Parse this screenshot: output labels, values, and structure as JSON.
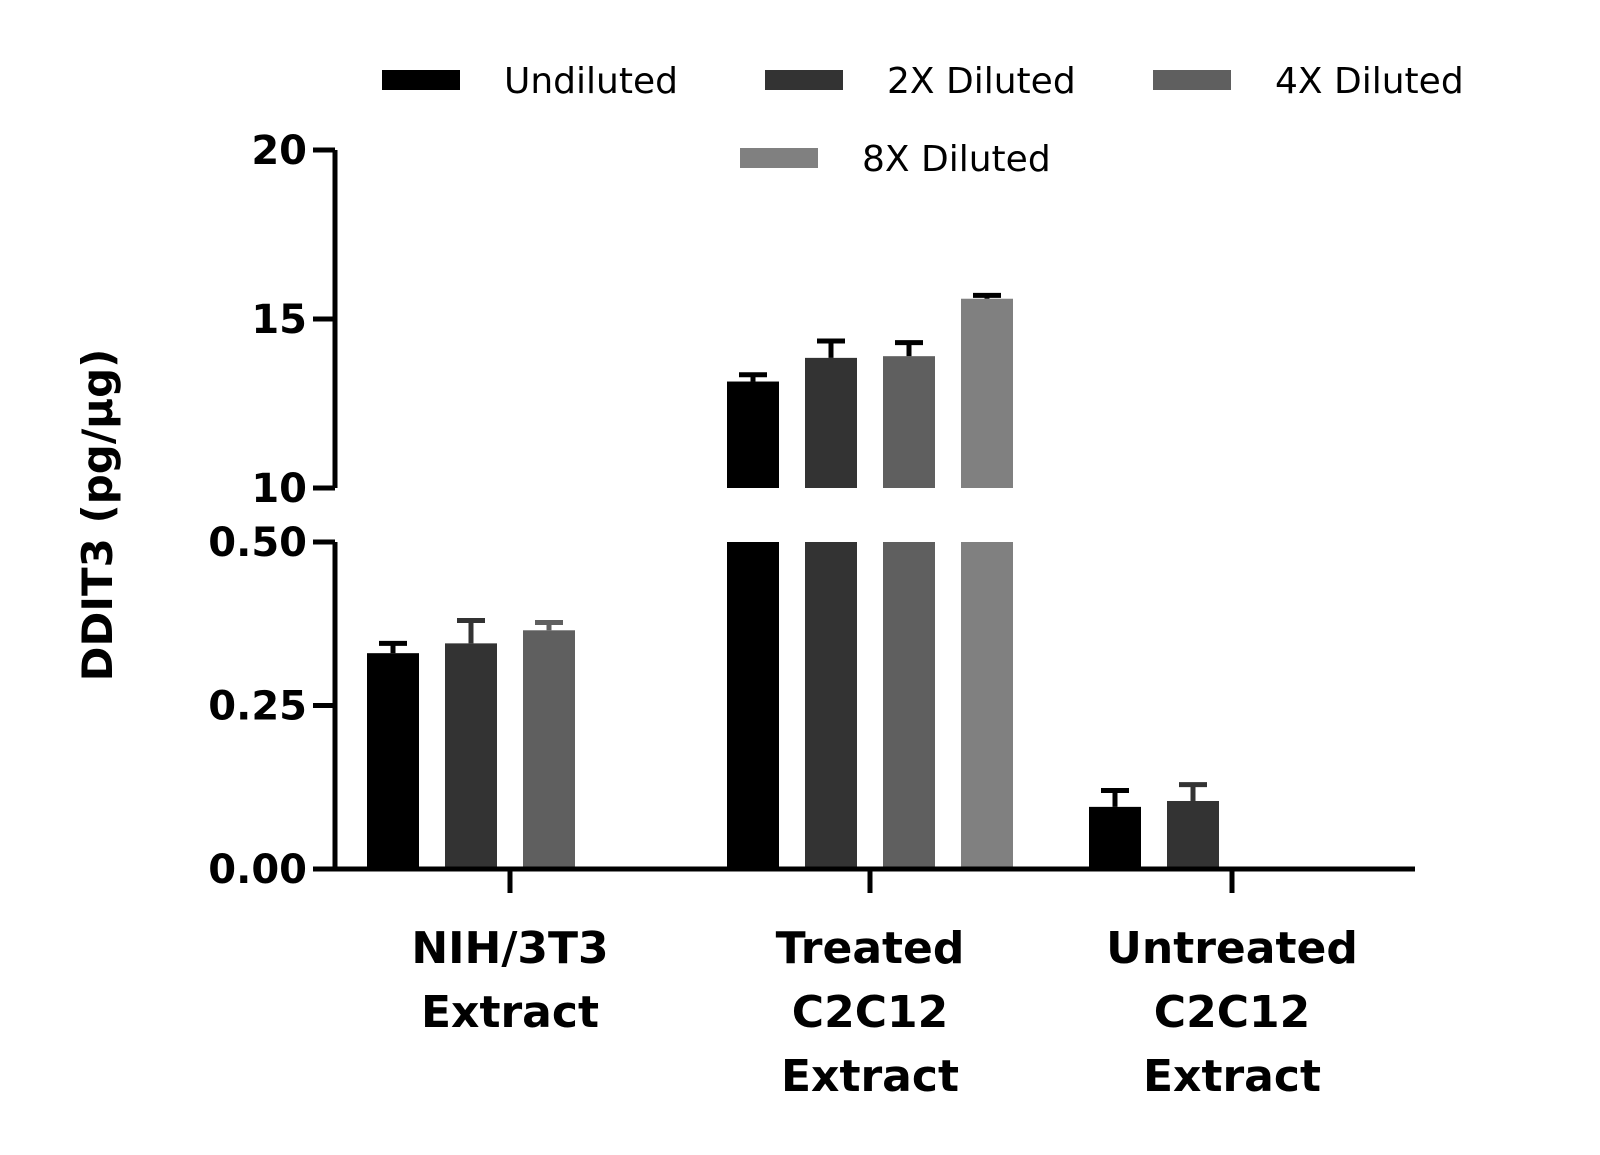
{
  "chart_data": {
    "type": "bar",
    "ylabel": "DDIT3 (pg/µg)",
    "xlabel": "",
    "categories": [
      [
        "NIH/3T3",
        "Extract"
      ],
      [
        "Treated",
        "C2C12",
        "Extract"
      ],
      [
        "Untreated",
        "C2C12",
        "Extract"
      ]
    ],
    "series": [
      {
        "name": "Undiluted",
        "color": "#000000",
        "values": [
          0.33,
          13.15,
          0.095
        ],
        "errors": [
          0.015,
          0.2,
          0.025
        ]
      },
      {
        "name": "2X Diluted",
        "color": "#333333",
        "values": [
          0.345,
          13.85,
          0.104
        ],
        "errors": [
          0.035,
          0.5,
          0.025
        ]
      },
      {
        "name": "4X Diluted",
        "color": "#5f5f5f",
        "values": [
          0.365,
          13.9,
          null
        ],
        "errors": [
          0.012,
          0.4,
          null
        ]
      },
      {
        "name": "8X Diluted",
        "color": "#808080",
        "values": [
          null,
          15.6,
          null
        ],
        "errors": [
          null,
          0.1,
          null
        ]
      }
    ],
    "y_axis_segments": [
      {
        "range": [
          0,
          0.5
        ],
        "ticks": [
          0,
          0.25,
          0.5
        ],
        "tick_labels": [
          "0.00",
          "0.25",
          "0.50"
        ]
      },
      {
        "range": [
          10,
          20
        ],
        "ticks": [
          10,
          15,
          20
        ],
        "tick_labels": [
          "10",
          "15",
          "20"
        ]
      }
    ],
    "axis_break": true,
    "legend_position": "top",
    "grid": false
  }
}
